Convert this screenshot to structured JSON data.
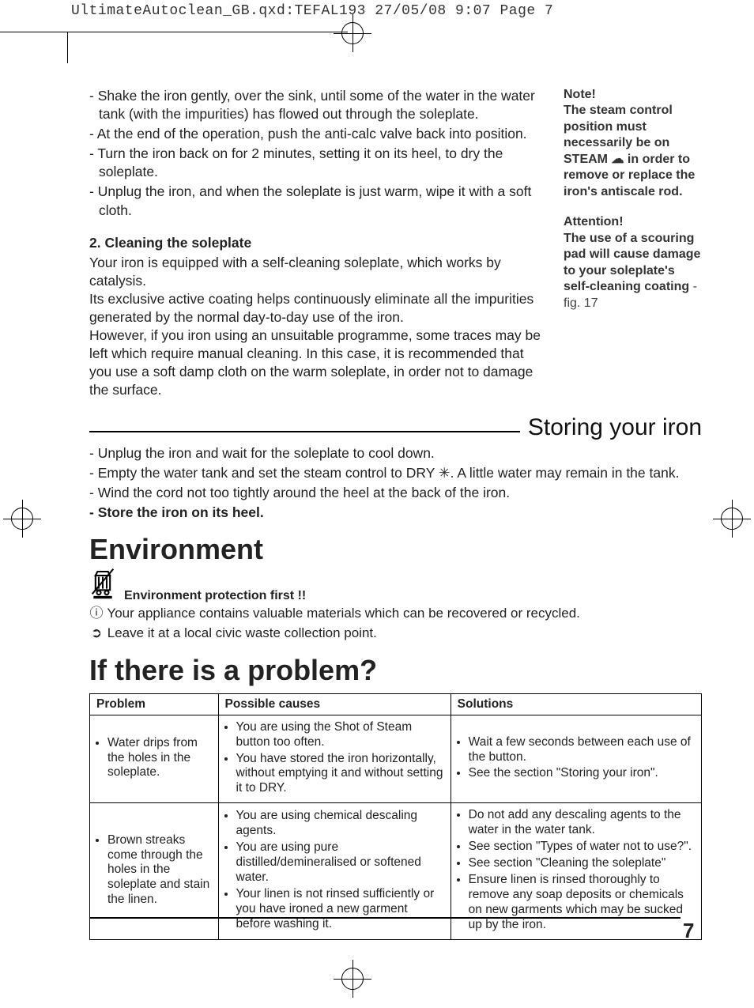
{
  "crop_info": "UltimateAutoclean_GB.qxd:TEFAL193  27/05/08  9:07  Page 7",
  "intro_bullets": [
    "- Shake the iron gently, over the sink, until some of the water in the water tank (with the impurities) has flowed out through the soleplate.",
    "- At the end of the operation, push the anti-calc valve back into position.",
    "- Turn the iron back on for 2 minutes, setting it on its heel, to dry the soleplate.",
    "- Unplug the iron, and when the soleplate is just warm, wipe it with a soft cloth."
  ],
  "soleplate": {
    "heading": "2. Cleaning the soleplate",
    "p1": "Your iron is equipped with a self-cleaning soleplate, which works by catalysis.",
    "p2": "Its exclusive active coating helps continuously eliminate all the impurities generated by the normal day-to-day use of the iron.",
    "p3": "However, if you iron using an unsuitable programme, some traces may be left which require manual cleaning. In this case, it is recommended that you use a soft damp cloth on the warm soleplate, in order not to damage the surface."
  },
  "side": {
    "note_label": "Note!",
    "note_text_1": "The steam control position must necessarily be on STEAM ",
    "note_text_2": " in order to remove or replace the iron's antiscale rod.",
    "attention_label": "Attention!",
    "attention_text": "The use of a scouring pad will cause damage to your soleplate's self-cleaning coating",
    "attention_ref": " - fig. 17"
  },
  "storing": {
    "title": "Storing your iron",
    "items": [
      "- Unplug the iron and wait for the soleplate to cool down.",
      "- Empty the water tank and set the steam control to DRY ✳. A little water may remain in the tank.",
      "- Wind the cord not too tightly around the heel at the back of the iron."
    ],
    "bold_item": "- Store the iron on its heel."
  },
  "environment": {
    "title": "Environment",
    "subtitle": "Environment protection first !!",
    "line1": "Your appliance contains valuable materials which can be recovered or recycled.",
    "line2": "Leave it at a local civic waste collection point."
  },
  "problems": {
    "title": "If there is a problem?",
    "headers": [
      "Problem",
      "Possible causes",
      "Solutions"
    ],
    "col_widths": [
      "21%",
      "38%",
      "41%"
    ],
    "rows": [
      {
        "problem": [
          "Water drips from the holes in the soleplate."
        ],
        "causes": [
          "You are using the Shot of Steam button too often.",
          "You have stored the iron horizontally, without emptying it and without setting it to DRY."
        ],
        "solutions": [
          "Wait a few seconds between each use of the button.",
          "See the section \"Storing your iron\"."
        ]
      },
      {
        "problem": [
          "Brown streaks come through the holes in the soleplate and stain the linen."
        ],
        "causes": [
          "You are using chemical descaling agents.",
          "You are using pure distilled/demineralised or softened water.",
          "Your linen is not rinsed sufficiently or you have ironed a new garment before washing it."
        ],
        "solutions": [
          "Do not add any descaling agents to the water in the water tank.",
          "See section \"Types of water not to use?\".",
          "See section \"Cleaning the soleplate\"",
          "Ensure linen is rinsed thoroughly to remove any soap deposits or chemicals on new garments which may be sucked up by the iron."
        ]
      }
    ]
  },
  "page_number": "7"
}
